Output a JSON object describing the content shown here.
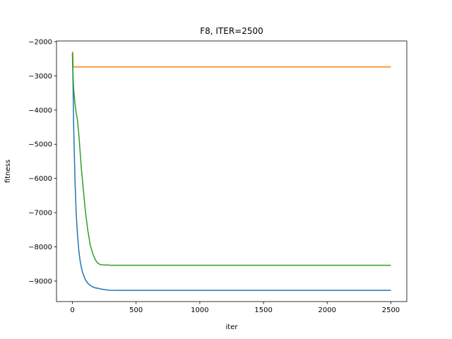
{
  "chart_data": {
    "type": "line",
    "title": "F8, ITER=2500",
    "xlabel": "iter",
    "ylabel": "fitness",
    "xlim": [
      -125,
      2625
    ],
    "ylim": [
      -9600,
      -1980
    ],
    "xticks": [
      0,
      500,
      1000,
      1500,
      2000,
      2500
    ],
    "yticks": [
      -9000,
      -8000,
      -7000,
      -6000,
      -5000,
      -4000,
      -3000,
      -2000
    ],
    "grid": false,
    "legend": "none",
    "series": [
      {
        "color": "#1f77b4",
        "x": [
          0,
          5,
          10,
          20,
          30,
          40,
          50,
          60,
          70,
          80,
          90,
          100,
          120,
          140,
          160,
          180,
          200,
          220,
          250,
          280,
          300,
          350,
          400,
          500,
          1000,
          1500,
          2000,
          2500
        ],
        "y": [
          -2350,
          -3300,
          -4500,
          -6050,
          -7050,
          -7650,
          -8100,
          -8400,
          -8600,
          -8750,
          -8850,
          -8950,
          -9060,
          -9130,
          -9170,
          -9200,
          -9210,
          -9230,
          -9250,
          -9265,
          -9270,
          -9272,
          -9273,
          -9273,
          -9273,
          -9273,
          -9273,
          -9273
        ]
      },
      {
        "color": "#ff7f0e",
        "x": [
          0,
          3,
          6,
          500,
          1000,
          1500,
          2000,
          2500
        ],
        "y": [
          -2300,
          -2300,
          -2740,
          -2740,
          -2740,
          -2740,
          -2740,
          -2740
        ]
      },
      {
        "color": "#2ca02c",
        "x": [
          0,
          5,
          10,
          20,
          30,
          40,
          50,
          60,
          70,
          80,
          90,
          100,
          120,
          140,
          160,
          180,
          200,
          220,
          250,
          280,
          300,
          350,
          400,
          500,
          1000,
          1500,
          2000,
          2500
        ],
        "y": [
          -2330,
          -3000,
          -3400,
          -3800,
          -4100,
          -4300,
          -4700,
          -5200,
          -5700,
          -6100,
          -6500,
          -6900,
          -7500,
          -7950,
          -8200,
          -8380,
          -8480,
          -8520,
          -8530,
          -8530,
          -8540,
          -8540,
          -8540,
          -8540,
          -8540,
          -8540,
          -8540,
          -8540
        ]
      }
    ]
  }
}
